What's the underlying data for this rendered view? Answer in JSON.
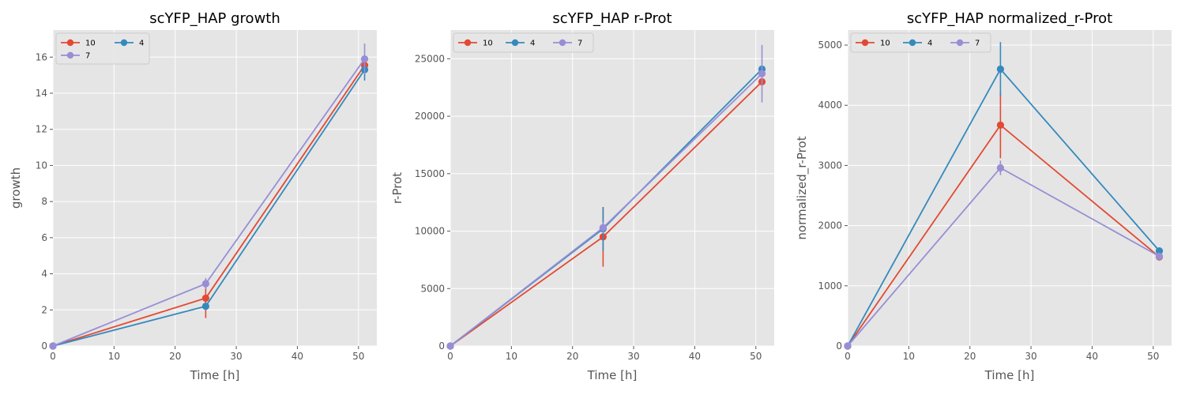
{
  "figure": {
    "colors": {
      "10": "#E24A33",
      "4": "#348ABD",
      "7": "#988ED5"
    }
  },
  "chart_data": [
    {
      "type": "line",
      "title": "scYFP_HAP growth",
      "xlabel": "Time [h]",
      "ylabel": "growth",
      "xlim": [
        0,
        53
      ],
      "ylim": [
        0,
        17.5
      ],
      "xticks": [
        0,
        10,
        20,
        30,
        40,
        50
      ],
      "yticks": [
        0,
        2,
        4,
        6,
        8,
        10,
        12,
        14,
        16
      ],
      "ytick_labels": [
        "0",
        "2",
        "4",
        "6",
        "8",
        "10",
        "12",
        "14",
        "16"
      ],
      "x": [
        0,
        25,
        51
      ],
      "legend": {
        "position": "top-left",
        "columns": 2,
        "entries": [
          "10",
          "4",
          "7"
        ]
      },
      "series": [
        {
          "name": "10",
          "color": "#E24A33",
          "values": [
            0,
            2.65,
            15.55
          ],
          "errors": [
            0,
            1.1,
            0.35
          ]
        },
        {
          "name": "4",
          "color": "#348ABD",
          "values": [
            0,
            2.2,
            15.3
          ],
          "errors": [
            0,
            0,
            0.6
          ]
        },
        {
          "name": "7",
          "color": "#988ED5",
          "values": [
            0,
            3.45,
            15.9
          ],
          "errors": [
            0,
            0.3,
            0.85
          ]
        }
      ]
    },
    {
      "type": "line",
      "title": "scYFP_HAP r-Prot",
      "xlabel": "Time [h]",
      "ylabel": "r-Prot",
      "xlim": [
        0,
        53
      ],
      "ylim": [
        0,
        27500
      ],
      "xticks": [
        0,
        10,
        20,
        30,
        40,
        50
      ],
      "yticks": [
        0,
        5000,
        10000,
        15000,
        20000,
        25000
      ],
      "ytick_labels": [
        "0",
        "5000",
        "10000",
        "15000",
        "20000",
        "25000"
      ],
      "x": [
        0,
        25,
        51
      ],
      "legend": {
        "position": "top-left",
        "columns": 3,
        "entries": [
          "10",
          "4",
          "7"
        ]
      },
      "series": [
        {
          "name": "10",
          "color": "#E24A33",
          "values": [
            0,
            9500,
            23000
          ],
          "errors": [
            0,
            2600,
            0
          ]
        },
        {
          "name": "4",
          "color": "#348ABD",
          "values": [
            0,
            10200,
            24100
          ],
          "errors": [
            0,
            1900,
            0
          ]
        },
        {
          "name": "7",
          "color": "#988ED5",
          "values": [
            0,
            10300,
            23700
          ],
          "errors": [
            0,
            500,
            2500
          ]
        }
      ]
    },
    {
      "type": "line",
      "title": "scYFP_HAP normalized_r-Prot",
      "xlabel": "Time [h]",
      "ylabel": "normalized_r-Prot",
      "xlim": [
        0,
        53
      ],
      "ylim": [
        0,
        5250
      ],
      "xticks": [
        0,
        10,
        20,
        30,
        40,
        50
      ],
      "yticks": [
        0,
        1000,
        2000,
        3000,
        4000,
        5000
      ],
      "ytick_labels": [
        "0",
        "1000",
        "2000",
        "3000",
        "4000",
        "5000"
      ],
      "x": [
        0,
        25,
        51
      ],
      "legend": {
        "position": "top-left",
        "columns": 3,
        "entries": [
          "10",
          "4",
          "7"
        ]
      },
      "series": [
        {
          "name": "10",
          "color": "#E24A33",
          "values": [
            0,
            3670,
            1480
          ],
          "errors": [
            0,
            550,
            0
          ]
        },
        {
          "name": "4",
          "color": "#348ABD",
          "values": [
            0,
            4600,
            1580
          ],
          "errors": [
            0,
            450,
            0
          ]
        },
        {
          "name": "7",
          "color": "#988ED5",
          "values": [
            0,
            2960,
            1490
          ],
          "errors": [
            0,
            120,
            0
          ]
        }
      ]
    }
  ]
}
